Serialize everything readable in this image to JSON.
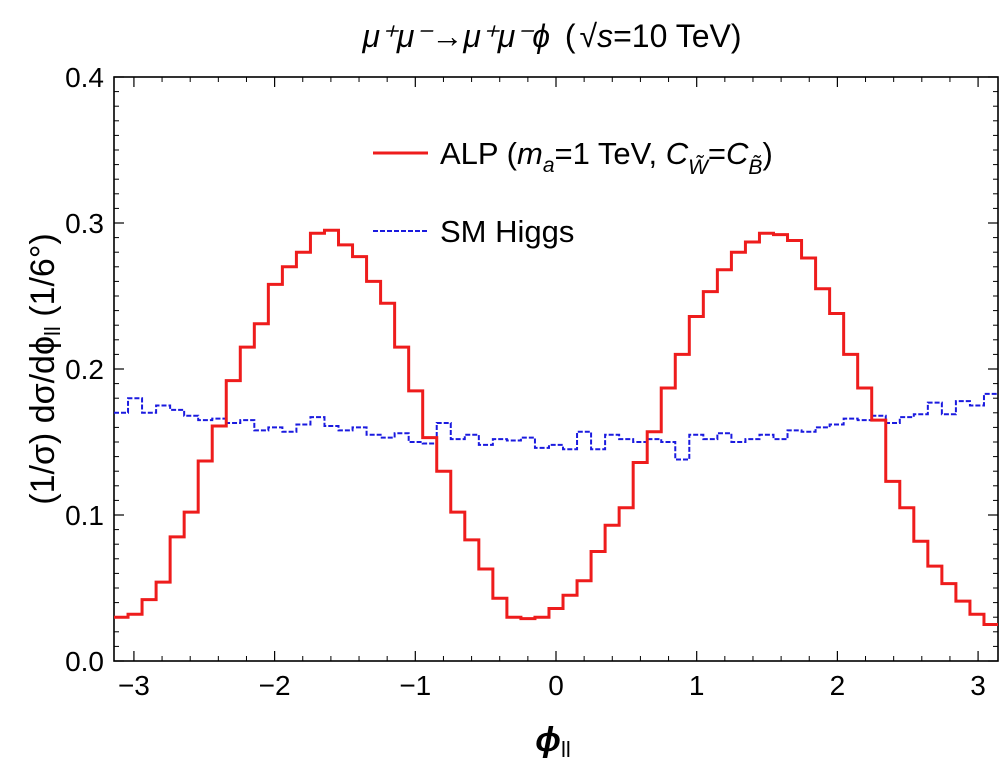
{
  "chart_data": {
    "type": "line",
    "style": "step",
    "title": "μ⁺μ⁻→μ⁺μ⁻ϕ (√s=10 TeV)",
    "title_parts": {
      "process": "μ⁺μ⁻→μ⁺μ⁻ϕ",
      "open": "(",
      "sqrt_symbol": "√",
      "s": "s",
      "energy": "=10 TeV)"
    },
    "xlabel": "ϕ",
    "xlabel_sub": "ll",
    "ylabel": "(1/σ) dσ/dϕ",
    "ylabel_sub": "ll",
    "ylabel_unit": " (1/6°)",
    "xlim": [
      -3.14159,
      3.14159
    ],
    "ylim": [
      0.0,
      0.4
    ],
    "xticks": [
      -3,
      -2,
      -1,
      0,
      1,
      2,
      3
    ],
    "xtick_labels": [
      "−3",
      "−2",
      "−1",
      "0",
      "1",
      "2",
      "3"
    ],
    "yticks": [
      0.0,
      0.1,
      0.2,
      0.3,
      0.4
    ],
    "ytick_labels": [
      "0.0",
      "0.1",
      "0.2",
      "0.3",
      "0.4"
    ],
    "legend_position": "top-right",
    "legend": {
      "alp_text": "ALP (",
      "alp_m": "m",
      "alp_m_sub": "a",
      "alp_mid": "=1 TeV, ",
      "alp_c": "C",
      "alp_c_sub1": "W̃",
      "alp_eq": "=",
      "alp_c2": "C",
      "alp_c_sub2": "B̃",
      "alp_close": ")",
      "sm_text": "SM Higgs"
    },
    "bin_width_deg": 6,
    "series": [
      {
        "name": "ALP (m_a=1 TeV, C_W̃=C_B̃)",
        "color": "#ee1c1c",
        "line_style": "solid",
        "values": [
          0.03,
          0.032,
          0.042,
          0.054,
          0.085,
          0.102,
          0.137,
          0.161,
          0.192,
          0.215,
          0.231,
          0.258,
          0.27,
          0.28,
          0.293,
          0.295,
          0.285,
          0.277,
          0.26,
          0.245,
          0.215,
          0.185,
          0.153,
          0.13,
          0.102,
          0.083,
          0.063,
          0.043,
          0.03,
          0.029,
          0.03,
          0.036,
          0.045,
          0.055,
          0.075,
          0.093,
          0.105,
          0.136,
          0.157,
          0.187,
          0.21,
          0.236,
          0.253,
          0.268,
          0.28,
          0.287,
          0.293,
          0.292,
          0.288,
          0.276,
          0.255,
          0.238,
          0.21,
          0.187,
          0.165,
          0.123,
          0.105,
          0.082,
          0.065,
          0.053,
          0.041,
          0.032,
          0.025
        ]
      },
      {
        "name": "SM Higgs",
        "color": "#1a1adf",
        "line_style": "dashed",
        "values": [
          0.17,
          0.18,
          0.17,
          0.175,
          0.172,
          0.168,
          0.165,
          0.166,
          0.163,
          0.165,
          0.158,
          0.16,
          0.157,
          0.162,
          0.167,
          0.161,
          0.158,
          0.16,
          0.155,
          0.153,
          0.156,
          0.15,
          0.149,
          0.163,
          0.152,
          0.155,
          0.148,
          0.152,
          0.151,
          0.153,
          0.146,
          0.148,
          0.145,
          0.157,
          0.145,
          0.155,
          0.152,
          0.15,
          0.152,
          0.15,
          0.138,
          0.155,
          0.152,
          0.156,
          0.15,
          0.152,
          0.155,
          0.152,
          0.158,
          0.157,
          0.16,
          0.162,
          0.166,
          0.165,
          0.168,
          0.163,
          0.167,
          0.169,
          0.177,
          0.169,
          0.178,
          0.175,
          0.183
        ]
      }
    ]
  }
}
